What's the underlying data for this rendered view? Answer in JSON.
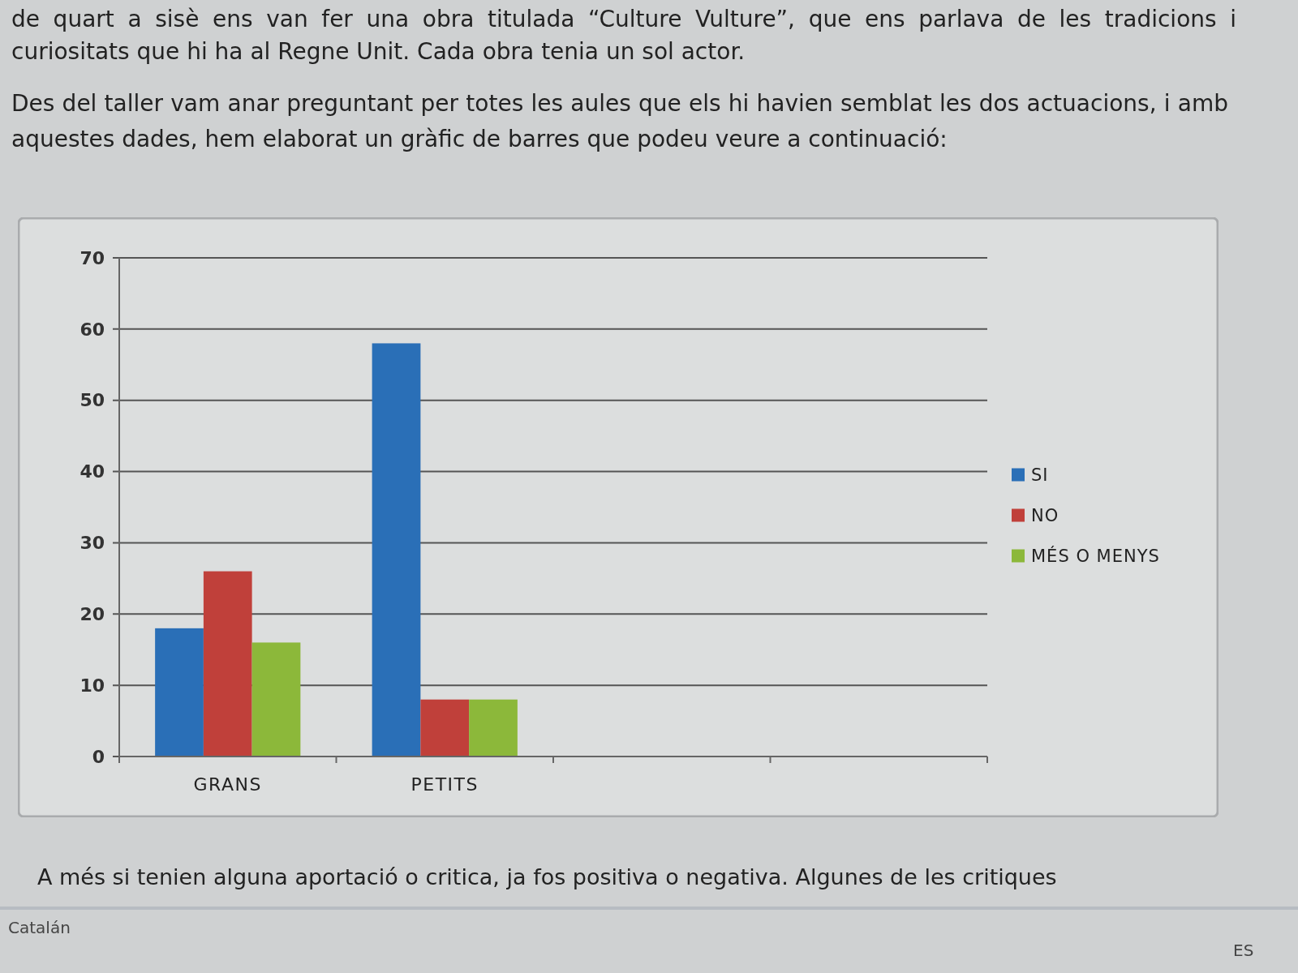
{
  "chart_data": {
    "type": "bar",
    "categories": [
      "GRANS",
      "PETITS",
      null,
      null
    ],
    "series": [
      {
        "name": "SI",
        "color": "#2a6fb7",
        "values": [
          18,
          58,
          null,
          null
        ]
      },
      {
        "name": "NO",
        "color": "#c0403a",
        "values": [
          26,
          8,
          null,
          null
        ]
      },
      {
        "name": "MÉS O MENYS",
        "color": "#8cb83a",
        "values": [
          16,
          8,
          null,
          null
        ]
      }
    ],
    "ylim": [
      0,
      70
    ],
    "yticks": [
      0,
      10,
      20,
      30,
      40,
      50,
      60,
      70
    ],
    "grid": "y",
    "legend": "right",
    "annotations": [
      "de quart a sisè ens van fer una obra titulada “Culture Vulture”, que ens parlava de les tradicions i curiositats que hi ha al Regne Unit. Cada obra tenia un sol actor.",
      "Des del taller vam anar preguntant per totes les aules que els hi havien semblat les dos actuacions, i amb aquestes dades, hem elaborat un gràfic de barres que podeu veure a continuació:",
      "A més si tenien alguna aportació o critica, ja fos positiva o negativa.  Algunes de les critiques",
      "Catalán",
      "ES"
    ]
  }
}
